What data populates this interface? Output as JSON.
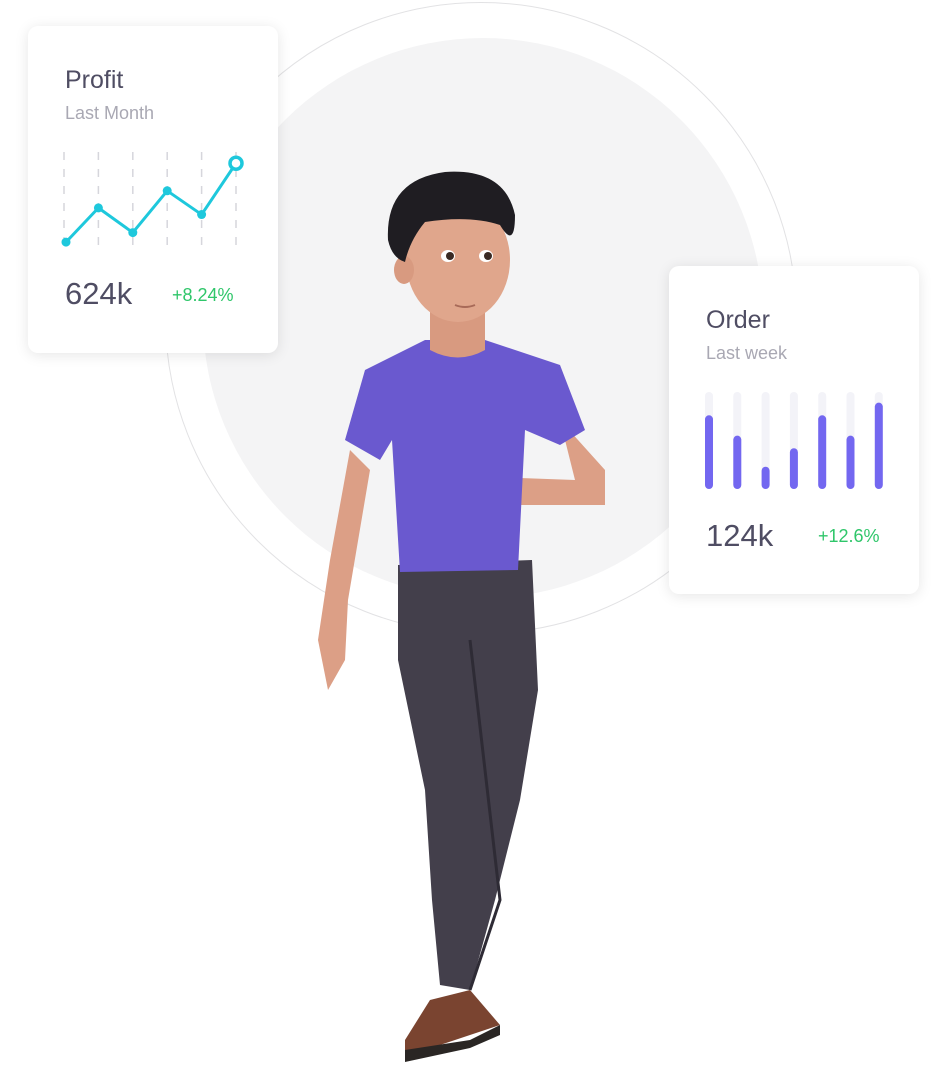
{
  "profit_card": {
    "title": "Profit",
    "subtitle": "Last Month",
    "value": "624k",
    "change": "+8.24%",
    "line_levels": [
      2,
      38,
      12,
      56,
      31,
      85
    ],
    "line_color": "#1ec8dc"
  },
  "order_card": {
    "title": "Order",
    "subtitle": "Last week",
    "value": "124k",
    "change": "+12.6%",
    "bar_fractions": [
      0.76,
      0.55,
      0.23,
      0.42,
      0.76,
      0.55,
      0.89
    ],
    "bar_color": "#7367f0"
  },
  "colors": {
    "positive": "#2fc66a",
    "shirt": "#6a59cf",
    "pants": "#3f3b47"
  }
}
